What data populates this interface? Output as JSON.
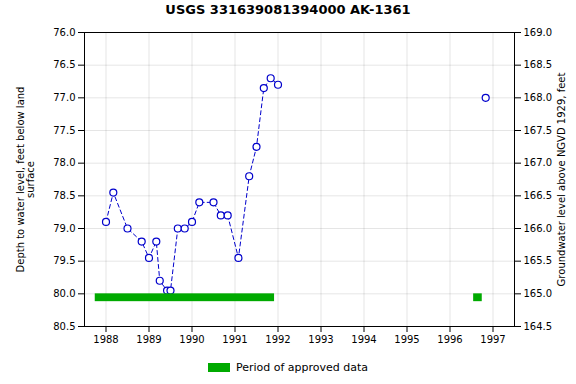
{
  "chart_data": {
    "type": "line",
    "title": "USGS 331639081394000 AK-1361",
    "ylabel": "Depth to water level, feet below land\nsurface",
    "y2label": "Groundwater level above NGVD 1929, feet",
    "xlim": [
      1987.5,
      1997.5
    ],
    "xticks": [
      1988,
      1989,
      1990,
      1991,
      1992,
      1993,
      1994,
      1995,
      1996,
      1997
    ],
    "ylim": [
      80.5,
      76.0
    ],
    "yticks": [
      {
        "value": 76.0,
        "label": "76.0"
      },
      76.5,
      {
        "value": 77.0,
        "label": "77.0"
      },
      77.5,
      {
        "value": 78.0,
        "label": "78.0"
      },
      78.5,
      {
        "value": 79.0,
        "label": "79.0"
      },
      79.5,
      {
        "value": 80.0,
        "label": "80.0"
      },
      80.5
    ],
    "y2lim": [
      164.5,
      169.0
    ],
    "y2ticks": [
      164.5,
      {
        "value": 165.0,
        "label": "165.0"
      },
      165.5,
      {
        "value": 166.0,
        "label": "166.0"
      },
      166.5,
      {
        "value": 167.0,
        "label": "167.0"
      },
      167.5,
      {
        "value": 168.0,
        "label": "168.0"
      },
      168.5,
      {
        "value": 169.0,
        "label": "169.0"
      }
    ],
    "grid": true,
    "legend": "bottom",
    "series": [
      {
        "type": "line",
        "color": "#0000cc",
        "marker": "open_circle",
        "line_style": "dashed",
        "x": [
          1988.0,
          1988.17,
          1988.5,
          1988.83,
          1989.0,
          1989.17,
          1989.25,
          1989.42,
          1989.5,
          1989.67,
          1989.83,
          1990.0,
          1990.17,
          1990.5,
          1990.67,
          1990.83,
          1991.08,
          1991.33,
          1991.5,
          1991.67,
          1991.83,
          1992.0
        ],
        "values": [
          78.9,
          78.45,
          79.0,
          79.2,
          79.45,
          79.2,
          79.8,
          79.95,
          79.95,
          79.0,
          79.0,
          78.9,
          78.6,
          78.6,
          78.8,
          78.8,
          79.45,
          78.2,
          77.75,
          76.85,
          76.7,
          76.8
        ]
      },
      {
        "type": "line",
        "color": "#0000cc",
        "marker": "open_circle",
        "line_style": "none",
        "x": [
          1996.83
        ],
        "values": [
          77.0
        ]
      },
      {
        "type": "band",
        "name": "Period of approved data",
        "color": "#00aa00",
        "starts": [
          1987.75,
          1996.55
        ],
        "ends": [
          1991.92,
          1996.75
        ],
        "y_from": 80.0,
        "y_to": 80.12
      }
    ]
  }
}
